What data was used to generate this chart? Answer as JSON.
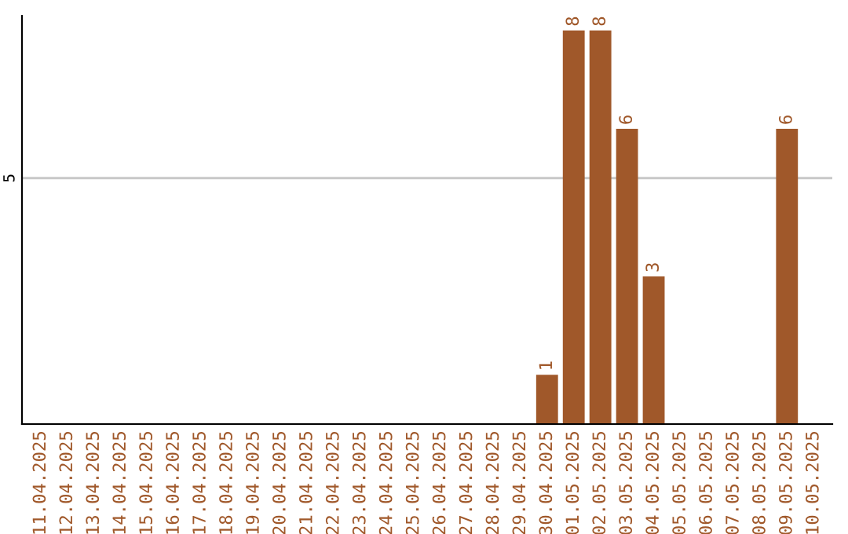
{
  "chart_data": {
    "type": "bar",
    "categories": [
      "11.04.2025",
      "12.04.2025",
      "13.04.2025",
      "14.04.2025",
      "15.04.2025",
      "16.04.2025",
      "17.04.2025",
      "18.04.2025",
      "19.04.2025",
      "20.04.2025",
      "21.04.2025",
      "22.04.2025",
      "23.04.2025",
      "24.04.2025",
      "25.04.2025",
      "26.04.2025",
      "27.04.2025",
      "28.04.2025",
      "29.04.2025",
      "30.04.2025",
      "01.05.2025",
      "02.05.2025",
      "03.05.2025",
      "04.05.2025",
      "05.05.2025",
      "06.05.2025",
      "07.05.2025",
      "08.05.2025",
      "09.05.2025",
      "10.05.2025"
    ],
    "values": [
      null,
      null,
      null,
      null,
      null,
      null,
      null,
      null,
      null,
      null,
      null,
      null,
      null,
      null,
      null,
      null,
      null,
      null,
      null,
      1,
      8,
      8,
      6,
      3,
      null,
      null,
      null,
      null,
      6,
      null
    ],
    "data_labels": true,
    "color": "#a0582a",
    "ylim": [
      0,
      8.3
    ],
    "yticks": [
      5
    ],
    "grid": "y",
    "legend": false
  }
}
